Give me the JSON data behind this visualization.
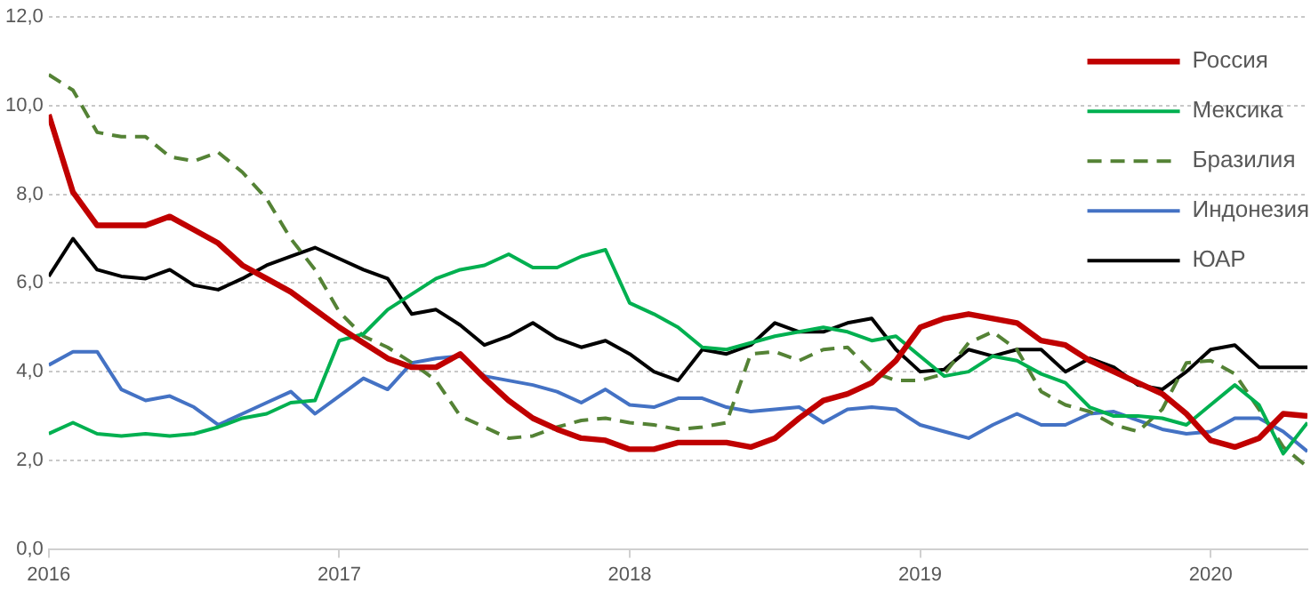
{
  "chart_data": {
    "type": "line",
    "x": [
      "2016-01",
      "2016-02",
      "2016-03",
      "2016-04",
      "2016-05",
      "2016-06",
      "2016-07",
      "2016-08",
      "2016-09",
      "2016-10",
      "2016-11",
      "2016-12",
      "2017-01",
      "2017-02",
      "2017-03",
      "2017-04",
      "2017-05",
      "2017-06",
      "2017-07",
      "2017-08",
      "2017-09",
      "2017-10",
      "2017-11",
      "2017-12",
      "2018-01",
      "2018-02",
      "2018-03",
      "2018-04",
      "2018-05",
      "2018-06",
      "2018-07",
      "2018-08",
      "2018-09",
      "2018-10",
      "2018-11",
      "2018-12",
      "2019-01",
      "2019-02",
      "2019-03",
      "2019-04",
      "2019-05",
      "2019-06",
      "2019-07",
      "2019-08",
      "2019-09",
      "2019-10",
      "2019-11",
      "2019-12",
      "2020-01",
      "2020-02",
      "2020-03",
      "2020-04",
      "2020-05"
    ],
    "series": [
      {
        "name": "Россия",
        "color": "#c00000",
        "line_style": "solid",
        "values": [
          9.8,
          8.05,
          7.3,
          7.3,
          7.3,
          7.5,
          7.2,
          6.9,
          6.4,
          6.1,
          5.8,
          5.4,
          5.0,
          4.65,
          4.3,
          4.1,
          4.1,
          4.4,
          3.85,
          3.35,
          2.95,
          2.7,
          2.5,
          2.45,
          2.25,
          2.25,
          2.4,
          2.4,
          2.4,
          2.3,
          2.5,
          2.95,
          3.35,
          3.5,
          3.75,
          4.25,
          5.0,
          5.2,
          5.3,
          5.2,
          5.1,
          4.7,
          4.6,
          4.25,
          4.0,
          3.75,
          3.5,
          3.05,
          2.45,
          2.3,
          2.5,
          3.05,
          3.0
        ]
      },
      {
        "name": "Мексика",
        "color": "#00b050",
        "line_style": "solid",
        "values": [
          2.6,
          2.85,
          2.6,
          2.55,
          2.6,
          2.55,
          2.6,
          2.75,
          2.95,
          3.05,
          3.3,
          3.35,
          4.7,
          4.85,
          5.4,
          5.75,
          6.1,
          6.3,
          6.4,
          6.65,
          6.35,
          6.35,
          6.6,
          6.75,
          5.55,
          5.3,
          5.0,
          4.55,
          4.5,
          4.65,
          4.8,
          4.9,
          5.0,
          4.9,
          4.7,
          4.8,
          4.35,
          3.9,
          4.0,
          4.35,
          4.25,
          3.95,
          3.75,
          3.2,
          3.0,
          3.0,
          2.95,
          2.8,
          3.25,
          3.7,
          3.25,
          2.15,
          2.85
        ]
      },
      {
        "name": "Бразилия",
        "color": "#548235",
        "line_style": "dashed",
        "values": [
          10.7,
          10.35,
          9.4,
          9.3,
          9.3,
          8.85,
          8.75,
          8.95,
          8.5,
          7.9,
          7.0,
          6.3,
          5.35,
          4.8,
          4.55,
          4.2,
          3.8,
          3.0,
          2.75,
          2.5,
          2.55,
          2.75,
          2.9,
          2.95,
          2.85,
          2.8,
          2.7,
          2.75,
          2.85,
          4.4,
          4.45,
          4.25,
          4.5,
          4.55,
          4.0,
          3.8,
          3.8,
          3.95,
          4.65,
          4.9,
          4.5,
          3.55,
          3.25,
          3.1,
          2.8,
          2.65,
          3.15,
          4.2,
          4.25,
          3.95,
          3.15,
          2.3,
          1.85
        ]
      },
      {
        "name": "Индонезия",
        "color": "#4472c4",
        "line_style": "solid",
        "values": [
          4.15,
          4.45,
          4.45,
          3.6,
          3.35,
          3.45,
          3.2,
          2.8,
          3.05,
          3.3,
          3.55,
          3.05,
          3.45,
          3.85,
          3.6,
          4.2,
          4.3,
          4.35,
          3.9,
          3.8,
          3.7,
          3.55,
          3.3,
          3.6,
          3.25,
          3.2,
          3.4,
          3.4,
          3.2,
          3.1,
          3.15,
          3.2,
          2.85,
          3.15,
          3.2,
          3.15,
          2.8,
          2.65,
          2.5,
          2.8,
          3.05,
          2.8,
          2.8,
          3.05,
          3.1,
          2.9,
          2.7,
          2.6,
          2.65,
          2.95,
          2.95,
          2.65,
          2.2
        ]
      },
      {
        "name": "ЮАР",
        "color": "#000000",
        "line_style": "solid",
        "values": [
          6.15,
          7.0,
          6.3,
          6.15,
          6.1,
          6.3,
          5.95,
          5.85,
          6.1,
          6.4,
          6.6,
          6.8,
          6.55,
          6.3,
          6.1,
          5.3,
          5.4,
          5.05,
          4.6,
          4.8,
          5.1,
          4.75,
          4.55,
          4.7,
          4.4,
          4.0,
          3.8,
          4.5,
          4.4,
          4.6,
          5.1,
          4.9,
          4.9,
          5.1,
          5.2,
          4.5,
          4.0,
          4.05,
          4.5,
          4.35,
          4.5,
          4.5,
          4.0,
          4.3,
          4.1,
          3.7,
          3.6,
          4.0,
          4.5,
          4.6,
          4.1,
          4.1,
          4.1
        ]
      }
    ],
    "xlim": [
      "2016-01",
      "2020-05"
    ],
    "xticks": [
      "2016",
      "2017",
      "2018",
      "2019",
      "2020"
    ],
    "ylim": [
      0,
      12
    ],
    "yticks": [
      {
        "value": 0,
        "label": "0,0"
      },
      {
        "value": 2,
        "label": "2,0"
      },
      {
        "value": 4,
        "label": "4,0"
      },
      {
        "value": 6,
        "label": "6,0"
      },
      {
        "value": 8,
        "label": "8,0"
      },
      {
        "value": 10,
        "label": "10,0"
      },
      {
        "value": 12,
        "label": "12,0"
      }
    ],
    "grid": "y",
    "legend": "top right",
    "marker": "none"
  }
}
